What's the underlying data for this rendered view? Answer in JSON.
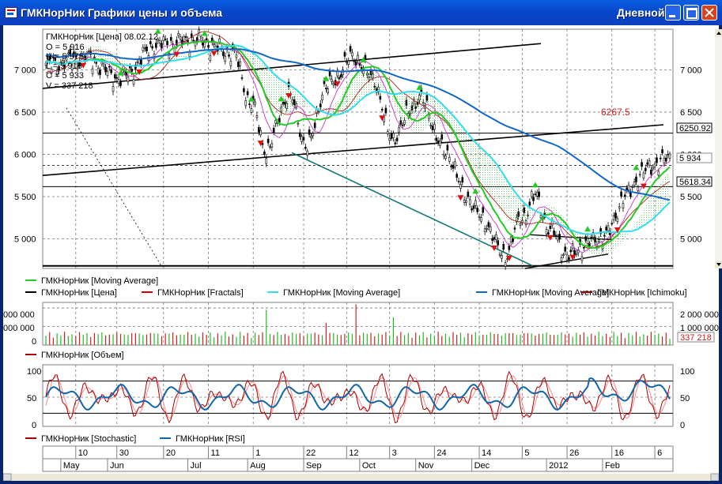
{
  "window": {
    "title": "ГМКНорНик Графики цены и объема",
    "period": "Дневной"
  },
  "price_panel": {
    "info": {
      "header": "ГМКНорНик [Цена] 08.02.12",
      "open": "O = 5 916",
      "high": "H = 5 975",
      "low": "L = 5 910",
      "close": "C = 5 933",
      "volume": "V = 337 218"
    },
    "y_labels": [
      "7 000",
      "6 500",
      "6 000",
      "5 500",
      "5 000"
    ],
    "y_values": [
      7000,
      6500,
      6000,
      5500,
      5000
    ],
    "y_range": [
      4650,
      7480
    ],
    "boxed_labels": [
      "6250.92",
      "5618.34"
    ],
    "boxed_values": [
      6250.92,
      5618.34
    ],
    "current_label": "5 934",
    "target_label": "6267.5",
    "legend": [
      {
        "name": "ГМКНорНик [Moving Average]",
        "color": "#22CC22"
      },
      {
        "name": "ГМКНорНик [Цена]",
        "color": "#000000"
      },
      {
        "name": "ГМКНорНик [Fractals]",
        "color": "#CC0000"
      },
      {
        "name": "ГМКНорНик [Moving Average]",
        "color": "#33DDEE"
      },
      {
        "name": "ГМКНорНик [Moving Average]",
        "color": "#1166CC"
      },
      {
        "name": "ГМКНорНик [Ichimoku]",
        "color": "#990000"
      }
    ]
  },
  "volume_panel": {
    "left_labels": [
      "000 000",
      "000 000",
      "0"
    ],
    "right_labels": [
      "2 000 000",
      "1 000 000",
      "0"
    ],
    "current_label": "337 218",
    "legend": [
      {
        "name": "ГМКНорНик [Объем]",
        "color": "#AA0000"
      }
    ]
  },
  "oscillator_panel": {
    "y_labels": [
      "100",
      "50",
      "0"
    ],
    "legend": [
      {
        "name": "ГМКНорНик [Stochastic]",
        "color": "#AA0000"
      },
      {
        "name": "ГМКНорНик [RSI]",
        "color": "#1166AA"
      }
    ]
  },
  "time_axis": {
    "days": [
      {
        "label": "10",
        "i": 16
      },
      {
        "label": "30",
        "i": 38
      },
      {
        "label": "20",
        "i": 63
      },
      {
        "label": "11",
        "i": 87
      },
      {
        "label": "1",
        "i": 111
      },
      {
        "label": "22",
        "i": 138
      },
      {
        "label": "12",
        "i": 161
      },
      {
        "label": "3",
        "i": 184
      },
      {
        "label": "24",
        "i": 208
      },
      {
        "label": "14",
        "i": 232
      },
      {
        "label": "5",
        "i": 255
      },
      {
        "label": "26",
        "i": 279
      },
      {
        "label": "16",
        "i": 303
      },
      {
        "label": "6",
        "i": 326
      }
    ],
    "months": [
      {
        "label": "May",
        "i": 8
      },
      {
        "label": "Jun",
        "i": 33
      },
      {
        "label": "Jul",
        "i": 76
      },
      {
        "label": "Aug",
        "i": 108
      },
      {
        "label": "Sep",
        "i": 138
      },
      {
        "label": "Oct",
        "i": 168
      },
      {
        "label": "Nov",
        "i": 198
      },
      {
        "label": "Dec",
        "i": 228
      },
      {
        "label": "2012",
        "i": 268
      },
      {
        "label": "Feb",
        "i": 298
      }
    ]
  },
  "chart_data": {
    "type": "line",
    "title": "ГМКНорНик [Цена] 08.02.12",
    "last_bar": {
      "open": 5916,
      "high": 5975,
      "low": 5910,
      "close": 5933,
      "volume": 337218
    },
    "close_path": {
      "start": "May",
      "end": "08.02.12",
      "keypoints": [
        [
          0,
          7050
        ],
        [
          20,
          7150
        ],
        [
          40,
          6900
        ],
        [
          60,
          7300
        ],
        [
          80,
          7350
        ],
        [
          100,
          7200
        ],
        [
          110,
          6600
        ],
        [
          118,
          6050
        ],
        [
          130,
          6700
        ],
        [
          140,
          6100
        ],
        [
          150,
          6800
        ],
        [
          165,
          7150
        ],
        [
          175,
          6900
        ],
        [
          185,
          6200
        ],
        [
          200,
          6650
        ],
        [
          215,
          6000
        ],
        [
          225,
          5500
        ],
        [
          235,
          5200
        ],
        [
          245,
          4800
        ],
        [
          255,
          5250
        ],
        [
          262,
          5500
        ],
        [
          270,
          5100
        ],
        [
          280,
          4800
        ],
        [
          290,
          4950
        ],
        [
          300,
          5050
        ],
        [
          310,
          5500
        ],
        [
          320,
          5800
        ],
        [
          330,
          5934
        ]
      ]
    },
    "volume_range": [
      0,
      2300000
    ],
    "oscillator_range": [
      0,
      100
    ],
    "oscillator_levels": [
      80,
      20
    ]
  }
}
